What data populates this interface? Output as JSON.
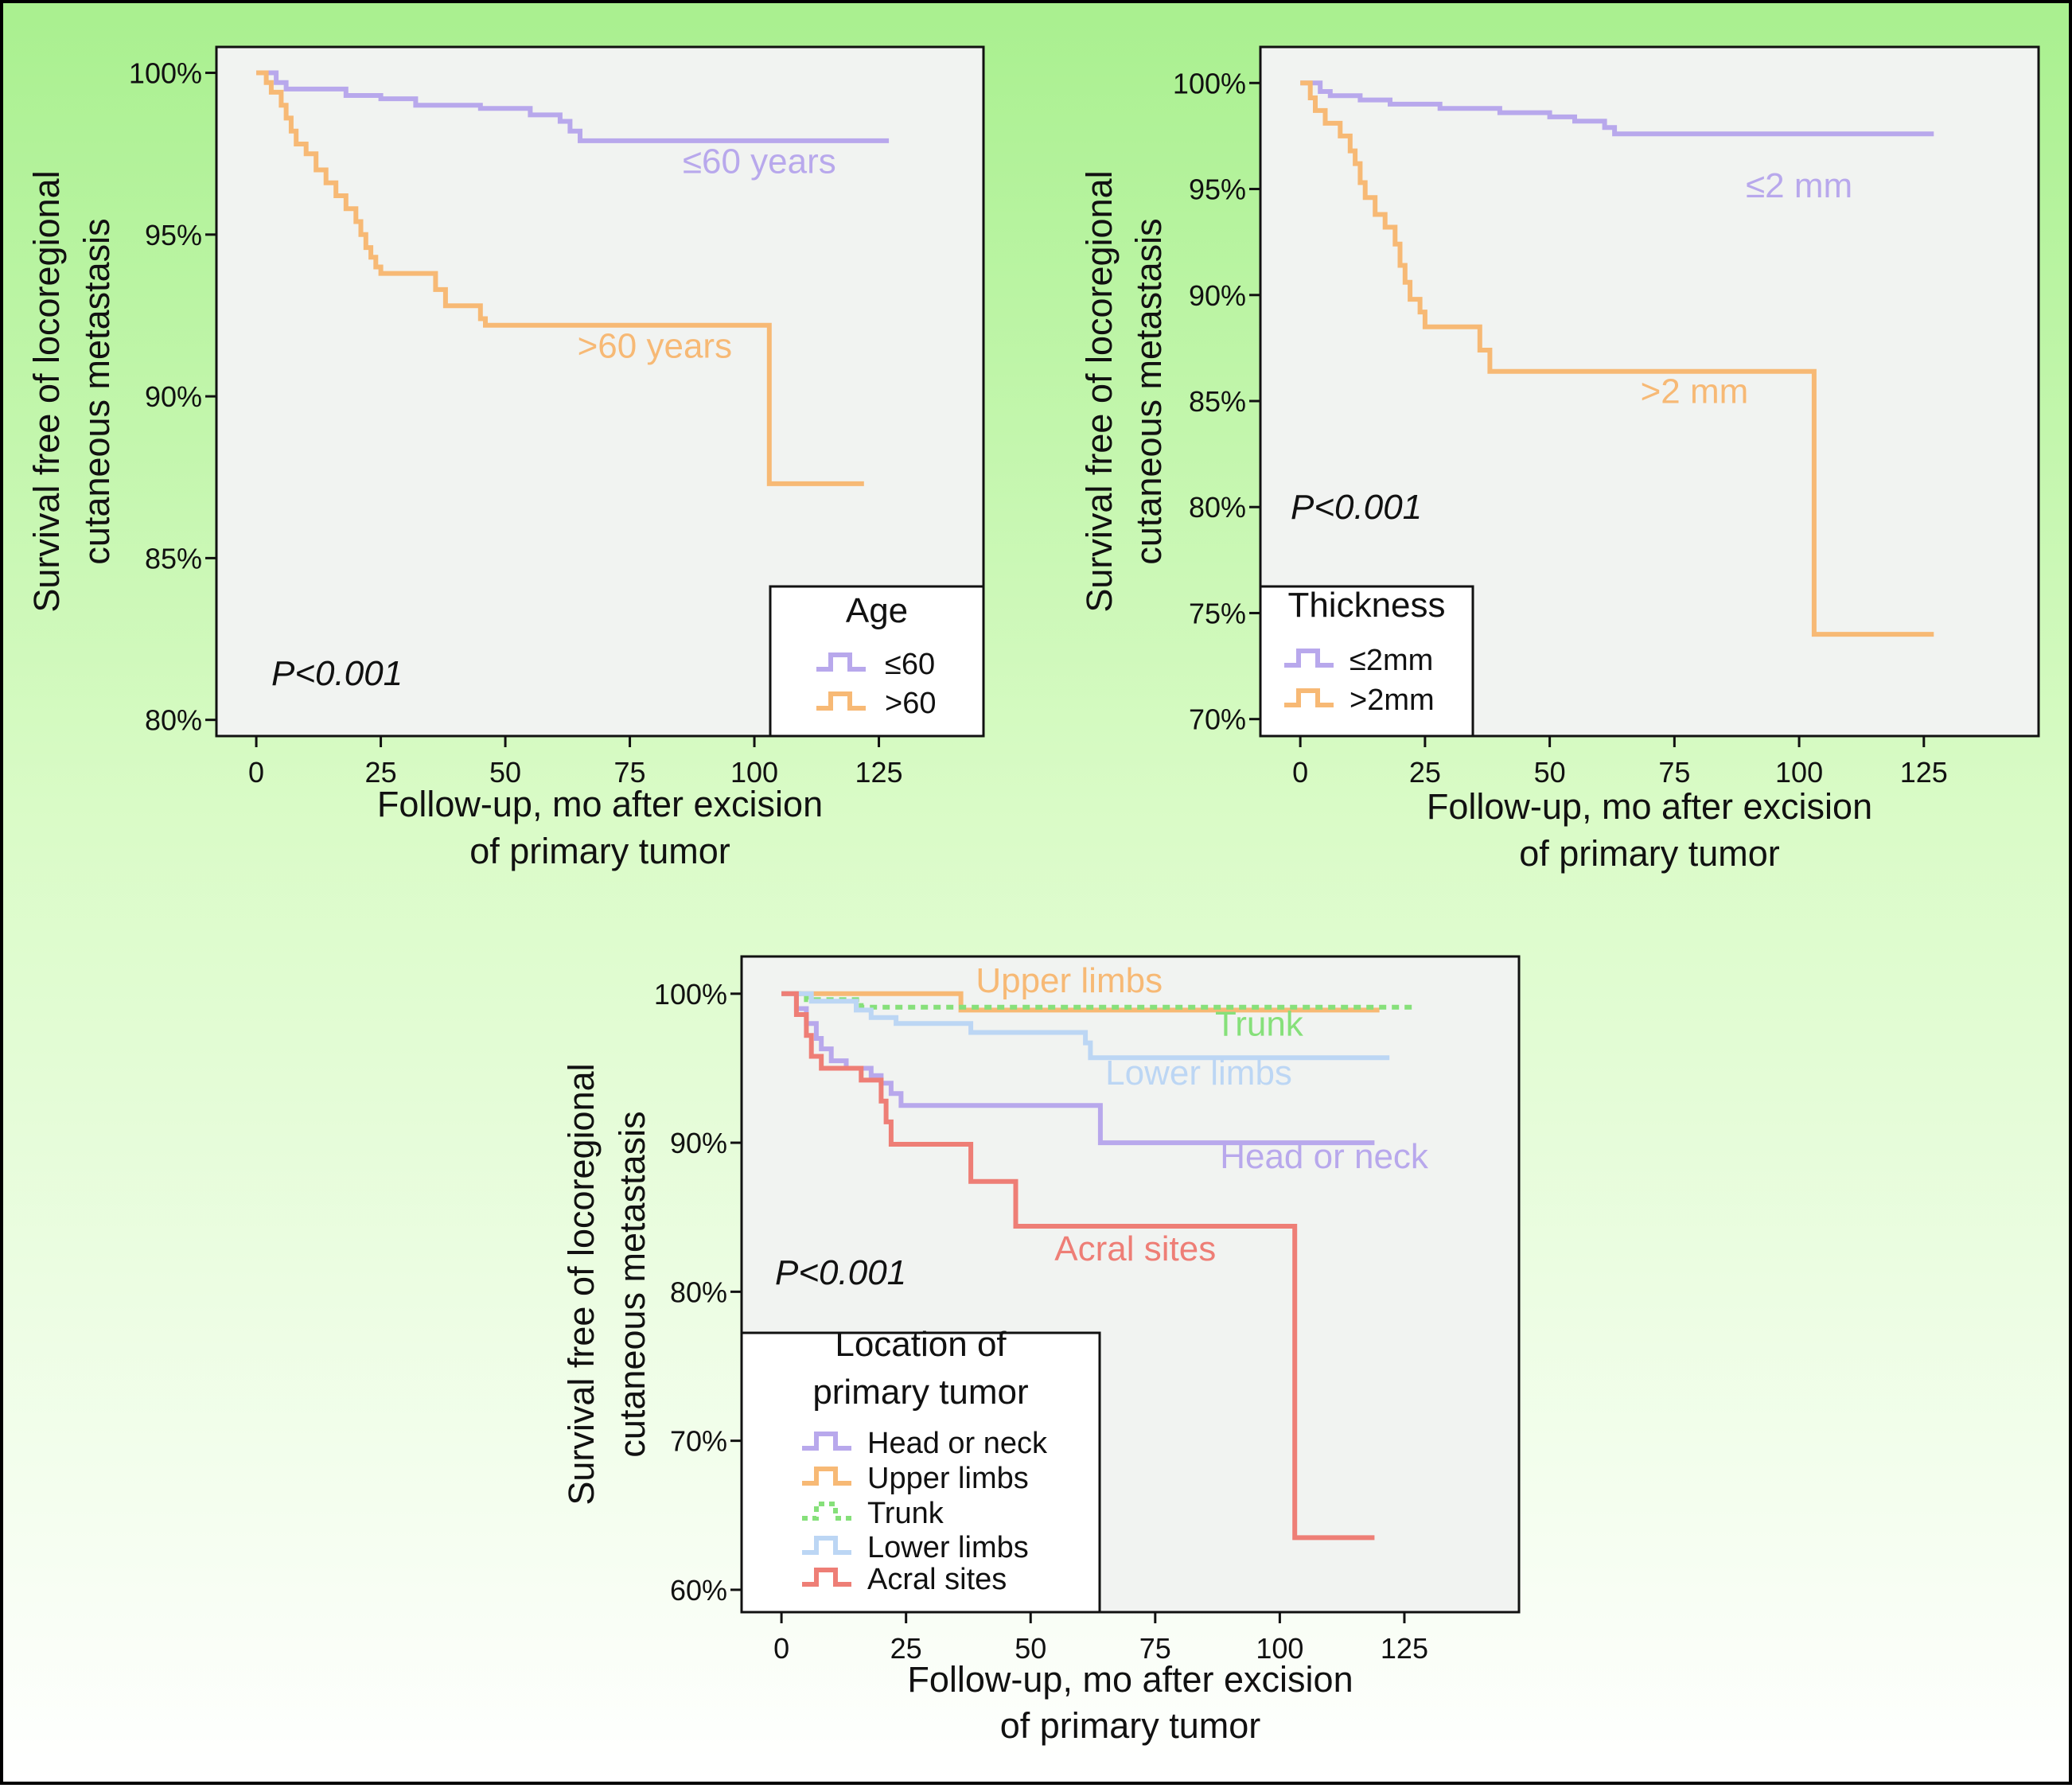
{
  "colors": {
    "lavender": "#b8a8ec",
    "orange": "#f7b975",
    "green": "#86e07a",
    "lightblue": "#bcd6f4",
    "red": "#ee7e76",
    "plot_bg": "#f1f3f1",
    "frame": "#111111"
  },
  "chart_data": [
    {
      "type": "line",
      "step": true,
      "ylabel": [
        "Survival free of locoregional",
        "cutaneous metastasis"
      ],
      "xlabel": [
        "Follow-up, mo after excision",
        "of primary tumor"
      ],
      "xlim": [
        -8,
        146
      ],
      "ylim": [
        79.5,
        100.8
      ],
      "xticks": [
        0,
        25,
        50,
        75,
        100,
        125
      ],
      "xtick_labels": [
        "0",
        "25",
        "50",
        "75",
        "100",
        "125"
      ],
      "yticks": [
        80,
        85,
        90,
        95,
        100
      ],
      "ytick_labels": [
        "80%",
        "85%",
        "90%",
        "95%",
        "100%"
      ],
      "annotation": "P<0.001",
      "legend": {
        "title": [
          "Age"
        ],
        "position": "bottom-right"
      },
      "series": [
        {
          "name": "≤60",
          "label": "≤60 years",
          "color": "#b8a8ec",
          "dash": false,
          "label_at": [
            101,
            96.9
          ],
          "label_anchor": "middle",
          "points": [
            [
              0,
              100
            ],
            [
              4,
              99.7
            ],
            [
              6,
              99.5
            ],
            [
              14,
              99.5
            ],
            [
              18,
              99.3
            ],
            [
              25,
              99.2
            ],
            [
              32,
              99.0
            ],
            [
              45,
              98.9
            ],
            [
              55,
              98.7
            ],
            [
              61,
              98.5
            ],
            [
              63,
              98.2
            ],
            [
              65,
              97.9
            ],
            [
              127,
              97.9
            ]
          ]
        },
        {
          "name": ">60",
          "label": ">60 years",
          "color": "#f7b975",
          "dash": false,
          "label_at": [
            80,
            91.2
          ],
          "label_anchor": "middle",
          "points": [
            [
              0,
              100
            ],
            [
              2,
              99.7
            ],
            [
              3,
              99.4
            ],
            [
              5,
              99.0
            ],
            [
              6,
              98.6
            ],
            [
              7,
              98.2
            ],
            [
              8,
              97.8
            ],
            [
              10,
              97.5
            ],
            [
              12,
              97.0
            ],
            [
              14,
              96.6
            ],
            [
              16,
              96.2
            ],
            [
              18,
              95.8
            ],
            [
              20,
              95.4
            ],
            [
              21,
              95.0
            ],
            [
              22,
              94.6
            ],
            [
              23,
              94.3
            ],
            [
              24,
              94.0
            ],
            [
              25,
              93.8
            ],
            [
              36,
              93.3
            ],
            [
              38,
              92.8
            ],
            [
              45,
              92.4
            ],
            [
              46,
              92.2
            ],
            [
              103,
              92.2
            ],
            [
              103,
              87.3
            ],
            [
              122,
              87.3
            ]
          ]
        }
      ]
    },
    {
      "type": "line",
      "step": true,
      "ylabel": [
        "Survival free of locoregional",
        "cutaneous metastasis"
      ],
      "xlabel": [
        "Follow-up, mo after excision",
        "of primary tumor"
      ],
      "xlim": [
        -8,
        148
      ],
      "ylim": [
        69.2,
        101.7
      ],
      "xticks": [
        0,
        25,
        50,
        75,
        100,
        125
      ],
      "xtick_labels": [
        "0",
        "25",
        "50",
        "75",
        "100",
        "125"
      ],
      "yticks": [
        70,
        75,
        80,
        85,
        90,
        95,
        100
      ],
      "ytick_labels": [
        "70%",
        "75%",
        "80%",
        "85%",
        "90%",
        "95%",
        "100%"
      ],
      "annotation": "P<0.001",
      "legend": {
        "title": [
          "Thickness"
        ],
        "position": "bottom-left"
      },
      "series": [
        {
          "name": "≤2mm",
          "label": "≤2 mm",
          "color": "#b8a8ec",
          "dash": false,
          "label_at": [
            100,
            94.6
          ],
          "label_anchor": "middle",
          "points": [
            [
              0,
              100
            ],
            [
              4,
              99.6
            ],
            [
              6,
              99.4
            ],
            [
              12,
              99.2
            ],
            [
              18,
              99.0
            ],
            [
              28,
              98.8
            ],
            [
              40,
              98.6
            ],
            [
              50,
              98.4
            ],
            [
              55,
              98.2
            ],
            [
              61,
              97.9
            ],
            [
              63,
              97.6
            ],
            [
              127,
              97.6
            ]
          ]
        },
        {
          "name": ">2mm",
          "label": ">2 mm",
          "color": "#f7b975",
          "dash": false,
          "label_at": [
            79,
            84.9
          ],
          "label_anchor": "middle",
          "points": [
            [
              0,
              100
            ],
            [
              2,
              99.3
            ],
            [
              3,
              98.7
            ],
            [
              5,
              98.1
            ],
            [
              8,
              97.5
            ],
            [
              10,
              96.8
            ],
            [
              11,
              96.2
            ],
            [
              12,
              95.3
            ],
            [
              13,
              94.6
            ],
            [
              15,
              93.8
            ],
            [
              17,
              93.2
            ],
            [
              19,
              92.4
            ],
            [
              20,
              91.4
            ],
            [
              21,
              90.6
            ],
            [
              22,
              89.8
            ],
            [
              24,
              89.2
            ],
            [
              25,
              88.5
            ],
            [
              36,
              87.4
            ],
            [
              38,
              86.4
            ],
            [
              103,
              86.4
            ],
            [
              103,
              74.0
            ],
            [
              127,
              74.0
            ]
          ]
        }
      ]
    },
    {
      "type": "line",
      "step": true,
      "ylabel": [
        "Survival free of locoregional",
        "cutaneous metastasis"
      ],
      "xlabel": [
        "Follow-up, mo after excision",
        "of primary tumor"
      ],
      "xlim": [
        -8,
        148
      ],
      "ylim": [
        58.5,
        102.5
      ],
      "xticks": [
        0,
        25,
        50,
        75,
        100,
        125
      ],
      "xtick_labels": [
        "0",
        "25",
        "50",
        "75",
        "100",
        "125"
      ],
      "yticks": [
        60,
        70,
        80,
        90,
        100
      ],
      "ytick_labels": [
        "60%",
        "70%",
        "80%",
        "90%",
        "100%"
      ],
      "annotation": "P<0.001",
      "legend": {
        "title": [
          "Location of",
          "primary tumor"
        ],
        "position": "bottom-left"
      },
      "series": [
        {
          "name": "Head or neck",
          "label": "Head or neck",
          "color": "#b8a8ec",
          "dash": false,
          "label_at": [
            88,
            88.3
          ],
          "label_anchor": "start",
          "points": [
            [
              0,
              100
            ],
            [
              3,
              99.0
            ],
            [
              5,
              98.0
            ],
            [
              7,
              97.0
            ],
            [
              8,
              96.3
            ],
            [
              10,
              95.5
            ],
            [
              13,
              95.0
            ],
            [
              18,
              94.5
            ],
            [
              20,
              94.0
            ],
            [
              22,
              93.3
            ],
            [
              24,
              92.5
            ],
            [
              63,
              92.5
            ],
            [
              64,
              90.0
            ],
            [
              119,
              90.0
            ]
          ]
        },
        {
          "name": "Upper limbs",
          "label": "Upper limbs",
          "color": "#f7b975",
          "dash": false,
          "label_at": [
            39,
            100.1
          ],
          "label_anchor": "start",
          "points": [
            [
              0,
              100
            ],
            [
              36,
              100
            ],
            [
              36,
              98.9
            ],
            [
              120,
              98.9
            ]
          ]
        },
        {
          "name": "Trunk",
          "label": "Trunk",
          "color": "#86e07a",
          "dash": true,
          "label_at": [
            87,
            97.2
          ],
          "label_anchor": "start",
          "points": [
            [
              0,
              100
            ],
            [
              5,
              99.6
            ],
            [
              14,
              99.6
            ],
            [
              16,
              99.1
            ],
            [
              127,
              99.1
            ]
          ]
        },
        {
          "name": "Lower limbs",
          "label": "Lower limbs",
          "color": "#bcd6f4",
          "dash": false,
          "label_at": [
            65,
            93.9
          ],
          "label_anchor": "start",
          "points": [
            [
              0,
              100
            ],
            [
              6,
              99.5
            ],
            [
              15,
              98.9
            ],
            [
              18,
              98.4
            ],
            [
              23,
              98.0
            ],
            [
              38,
              97.4
            ],
            [
              61,
              96.7
            ],
            [
              62,
              95.7
            ],
            [
              122,
              95.7
            ]
          ]
        },
        {
          "name": "Acral sites",
          "label": "Acral sites",
          "color": "#ee7e76",
          "dash": false,
          "label_at": [
            71,
            82.1
          ],
          "label_anchor": "middle",
          "points": [
            [
              0,
              100
            ],
            [
              3,
              98.6
            ],
            [
              5,
              97.2
            ],
            [
              6,
              95.8
            ],
            [
              8,
              95.0
            ],
            [
              14,
              95.0
            ],
            [
              16,
              94.2
            ],
            [
              20,
              92.8
            ],
            [
              21,
              91.4
            ],
            [
              22,
              89.9
            ],
            [
              38,
              89.9
            ],
            [
              38,
              87.4
            ],
            [
              47,
              87.4
            ],
            [
              47,
              84.4
            ],
            [
              103,
              84.4
            ],
            [
              103,
              63.5
            ],
            [
              119,
              63.5
            ]
          ]
        }
      ]
    }
  ]
}
